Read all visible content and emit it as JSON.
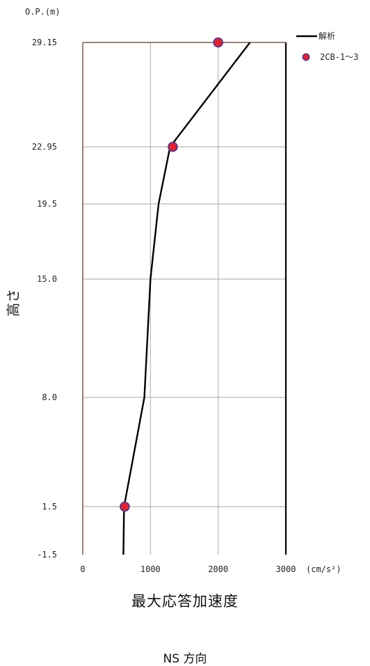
{
  "chart_data": {
    "type": "line",
    "y_unit_label": "O.P.(m)",
    "x_unit_label": "(cm/s²)",
    "xlabel": "最大応答加速度",
    "ylabel": "高さ",
    "subtitle": "NS 方向",
    "xlim": [
      0,
      3000
    ],
    "x_ticks": [
      "0",
      "1000",
      "2000",
      "3000"
    ],
    "y_ticks": [
      "29.15",
      "22.95",
      "19.5",
      "15.0",
      "8.0",
      "1.5",
      "-1.5"
    ],
    "grid": true,
    "legend_position": "top-right",
    "series": [
      {
        "name": "解析",
        "style": "line",
        "color": "#000000",
        "points": [
          {
            "y": "29.15",
            "x": 2470
          },
          {
            "y": "22.95",
            "x": 1290
          },
          {
            "y": "19.5",
            "x": 1120
          },
          {
            "y": "15.0",
            "x": 1000
          },
          {
            "y": "8.0",
            "x": 910
          },
          {
            "y": "1.5",
            "x": 610
          },
          {
            "y": "-1.5",
            "x": 600
          }
        ]
      },
      {
        "name": "2CB-1～3",
        "style": "marker",
        "color": "#e8202a",
        "edge_color": "#3a3aa8",
        "points": [
          {
            "y": "29.15",
            "x": 2000
          },
          {
            "y": "22.95",
            "x": 1330
          },
          {
            "y": "1.5",
            "x": 620
          }
        ]
      }
    ]
  }
}
